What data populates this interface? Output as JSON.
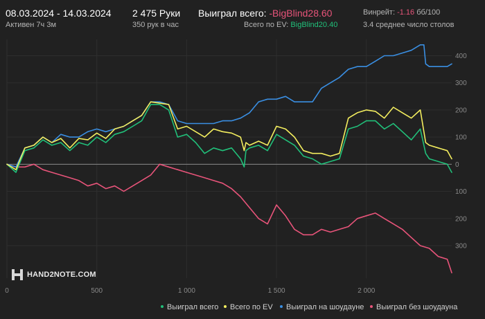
{
  "header": {
    "date_range": "08.03.2024 - 14.03.2024",
    "active_time": "Активен 7ч 3м",
    "hands": "2 475 Руки",
    "hands_rate": "350 рук в час",
    "won_total_label": "Выиграл всего:",
    "won_total_value": "-BigBlind28.60",
    "ev_label": "Всего по EV:",
    "ev_value": "BigBlind20.40",
    "winrate_label": "Винрейт:",
    "winrate_value": "-1.16",
    "winrate_unit": "бб/100",
    "tables": "3.4 среднее число столов"
  },
  "logo_text": "HAND2NOTE.COM",
  "colors": {
    "background": "#212121",
    "won": "#21c07a",
    "ev": "#f4ee5f",
    "showdown": "#3a8fe3",
    "non_showdown": "#e8547a",
    "grid": "#2e2e2e",
    "zero": "#8a8a8a"
  },
  "chart_data": {
    "type": "line",
    "xlabel": "",
    "ylabel": "",
    "xlim": [
      0,
      2475
    ],
    "ylim": [
      -420,
      460
    ],
    "x_ticks": [
      0,
      500,
      1000,
      1500,
      2000
    ],
    "x_tick_labels": [
      "0",
      "500",
      "1 000",
      "1 500",
      "2 000"
    ],
    "y_ticks": [
      400,
      300,
      200,
      100,
      0,
      -100,
      -200,
      -300
    ],
    "y_tick_labels": [
      "400",
      "300",
      "200",
      "100",
      "0",
      "100",
      "200",
      "300"
    ],
    "grid": true,
    "legend_position": "bottom-right",
    "series": [
      {
        "name": "Выиграл всего",
        "color": "#21c07a",
        "x": [
          0,
          50,
          100,
          150,
          200,
          250,
          300,
          350,
          400,
          450,
          500,
          550,
          600,
          650,
          700,
          750,
          800,
          850,
          900,
          950,
          1000,
          1050,
          1100,
          1150,
          1200,
          1250,
          1300,
          1320,
          1330,
          1350,
          1400,
          1450,
          1500,
          1550,
          1600,
          1650,
          1700,
          1750,
          1800,
          1850,
          1900,
          1950,
          2000,
          2050,
          2100,
          2150,
          2200,
          2250,
          2300,
          2330,
          2350,
          2400,
          2450,
          2475
        ],
        "y": [
          0,
          -30,
          50,
          60,
          90,
          70,
          80,
          50,
          80,
          70,
          100,
          80,
          110,
          120,
          140,
          160,
          220,
          220,
          200,
          100,
          110,
          80,
          40,
          60,
          50,
          60,
          20,
          -10,
          50,
          60,
          70,
          50,
          110,
          90,
          70,
          30,
          20,
          0,
          10,
          20,
          130,
          140,
          160,
          160,
          130,
          150,
          120,
          90,
          130,
          40,
          20,
          10,
          0,
          -30
        ]
      },
      {
        "name": "Всего по EV",
        "color": "#f4ee5f",
        "x": [
          0,
          50,
          100,
          150,
          200,
          250,
          300,
          350,
          400,
          450,
          500,
          550,
          600,
          650,
          700,
          750,
          800,
          850,
          900,
          950,
          1000,
          1050,
          1100,
          1150,
          1200,
          1250,
          1300,
          1320,
          1330,
          1350,
          1400,
          1450,
          1500,
          1550,
          1600,
          1650,
          1700,
          1750,
          1800,
          1850,
          1900,
          1950,
          2000,
          2050,
          2100,
          2150,
          2200,
          2250,
          2300,
          2330,
          2350,
          2400,
          2450,
          2475
        ],
        "y": [
          0,
          -20,
          60,
          70,
          100,
          80,
          95,
          60,
          95,
          90,
          115,
          95,
          130,
          140,
          160,
          180,
          230,
          225,
          220,
          130,
          140,
          120,
          100,
          130,
          120,
          115,
          100,
          50,
          80,
          70,
          85,
          70,
          140,
          130,
          100,
          50,
          40,
          40,
          30,
          40,
          170,
          190,
          200,
          195,
          170,
          210,
          190,
          170,
          200,
          80,
          70,
          60,
          50,
          20
        ]
      },
      {
        "name": "Выиграл на шоудауне",
        "color": "#3a8fe3",
        "x": [
          0,
          50,
          100,
          150,
          200,
          250,
          300,
          350,
          400,
          450,
          500,
          550,
          600,
          650,
          700,
          750,
          800,
          850,
          900,
          950,
          1000,
          1050,
          1100,
          1150,
          1200,
          1250,
          1300,
          1350,
          1400,
          1450,
          1500,
          1550,
          1600,
          1650,
          1700,
          1750,
          1800,
          1850,
          1900,
          1950,
          2000,
          2050,
          2100,
          2150,
          2200,
          2250,
          2300,
          2320,
          2330,
          2350,
          2400,
          2450,
          2475
        ],
        "y": [
          0,
          -10,
          60,
          70,
          100,
          80,
          110,
          100,
          100,
          120,
          130,
          120,
          130,
          140,
          160,
          180,
          230,
          230,
          220,
          160,
          150,
          150,
          150,
          150,
          160,
          160,
          170,
          190,
          230,
          240,
          240,
          250,
          230,
          230,
          230,
          280,
          300,
          320,
          350,
          360,
          360,
          380,
          400,
          400,
          410,
          420,
          440,
          440,
          370,
          360,
          360,
          360,
          370
        ]
      },
      {
        "name": "Выиграл без шоудауна",
        "color": "#e8547a",
        "x": [
          0,
          50,
          100,
          150,
          200,
          250,
          300,
          350,
          400,
          450,
          500,
          550,
          600,
          650,
          700,
          750,
          800,
          850,
          900,
          950,
          1000,
          1050,
          1100,
          1150,
          1200,
          1250,
          1300,
          1350,
          1400,
          1450,
          1500,
          1550,
          1600,
          1650,
          1700,
          1750,
          1800,
          1850,
          1900,
          1950,
          2000,
          2050,
          2100,
          2150,
          2200,
          2250,
          2300,
          2350,
          2400,
          2450,
          2475
        ],
        "y": [
          0,
          -10,
          -10,
          0,
          -20,
          -30,
          -40,
          -50,
          -60,
          -80,
          -70,
          -90,
          -80,
          -100,
          -80,
          -60,
          -40,
          0,
          -10,
          -20,
          -30,
          -40,
          -50,
          -60,
          -70,
          -90,
          -120,
          -160,
          -200,
          -220,
          -150,
          -190,
          -240,
          -260,
          -260,
          -240,
          -250,
          -240,
          -230,
          -200,
          -190,
          -180,
          -200,
          -220,
          -240,
          -270,
          -300,
          -310,
          -340,
          -350,
          -400
        ]
      }
    ]
  }
}
